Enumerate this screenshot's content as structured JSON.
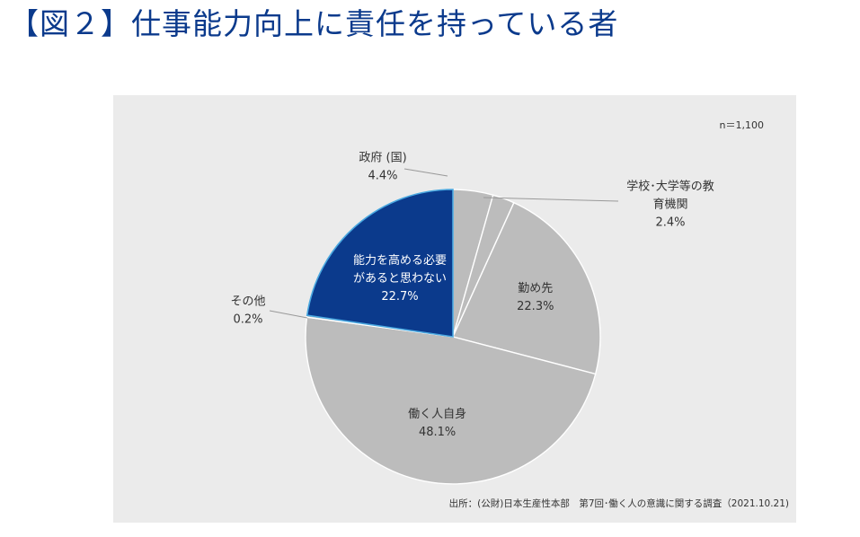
{
  "title": "【図２】仕事能力向上に責任を持っている者",
  "chart_data": {
    "type": "pie",
    "sample_size": "n＝1,100",
    "source": "出所：(公財)日本生産性本部　第7回･働く人の意識に関する調査（2021.10.21)",
    "slices": [
      {
        "label_lines": [
          "政府 (国)"
        ],
        "value": 4.4,
        "value_label": "4.4%",
        "color": "#bcbcbc"
      },
      {
        "label_lines": [
          "学校･大学等の教",
          "育機関"
        ],
        "value": 2.4,
        "value_label": "2.4%",
        "color": "#bcbcbc"
      },
      {
        "label_lines": [
          "勤め先"
        ],
        "value": 22.3,
        "value_label": "22.3%",
        "color": "#bcbcbc"
      },
      {
        "label_lines": [
          "働く人自身"
        ],
        "value": 48.1,
        "value_label": "48.1%",
        "color": "#bcbcbc"
      },
      {
        "label_lines": [
          "その他"
        ],
        "value": 0.2,
        "value_label": "0.2%",
        "color": "#bcbcbc"
      },
      {
        "label_lines": [
          "能力を高める必要",
          "があると思わない"
        ],
        "value": 22.7,
        "value_label": "22.7%",
        "color": "#0b3a8c",
        "highlighted": true
      }
    ]
  }
}
